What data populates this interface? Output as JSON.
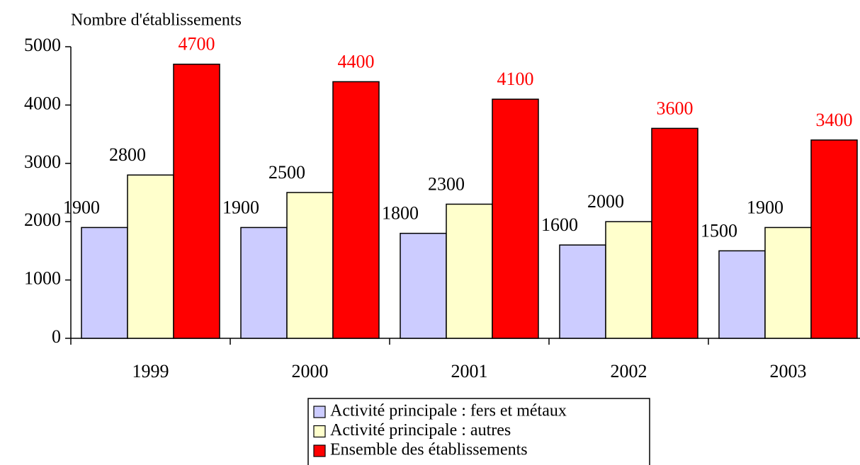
{
  "chart_data": {
    "type": "bar",
    "y_label": "Nombre d'établissements",
    "categories": [
      "1999",
      "2000",
      "2001",
      "2002",
      "2003"
    ],
    "series": [
      {
        "name": "Activité principale : fers et métaux",
        "color": "#ccccff",
        "label_color": "#000000",
        "values": [
          1900,
          1900,
          1800,
          1600,
          1500
        ]
      },
      {
        "name": "Activité principale : autres",
        "color": "#ffffcc",
        "label_color": "#000000",
        "values": [
          2800,
          2500,
          2300,
          2000,
          1900
        ]
      },
      {
        "name": "Ensemble des établissements",
        "color": "#ff0000",
        "label_color": "#ff0000",
        "values": [
          4700,
          4400,
          4100,
          3600,
          3400
        ]
      }
    ],
    "ylim": [
      0,
      5000
    ],
    "yticks": [
      0,
      1000,
      2000,
      3000,
      4000,
      5000
    ],
    "legend": "bottom"
  }
}
